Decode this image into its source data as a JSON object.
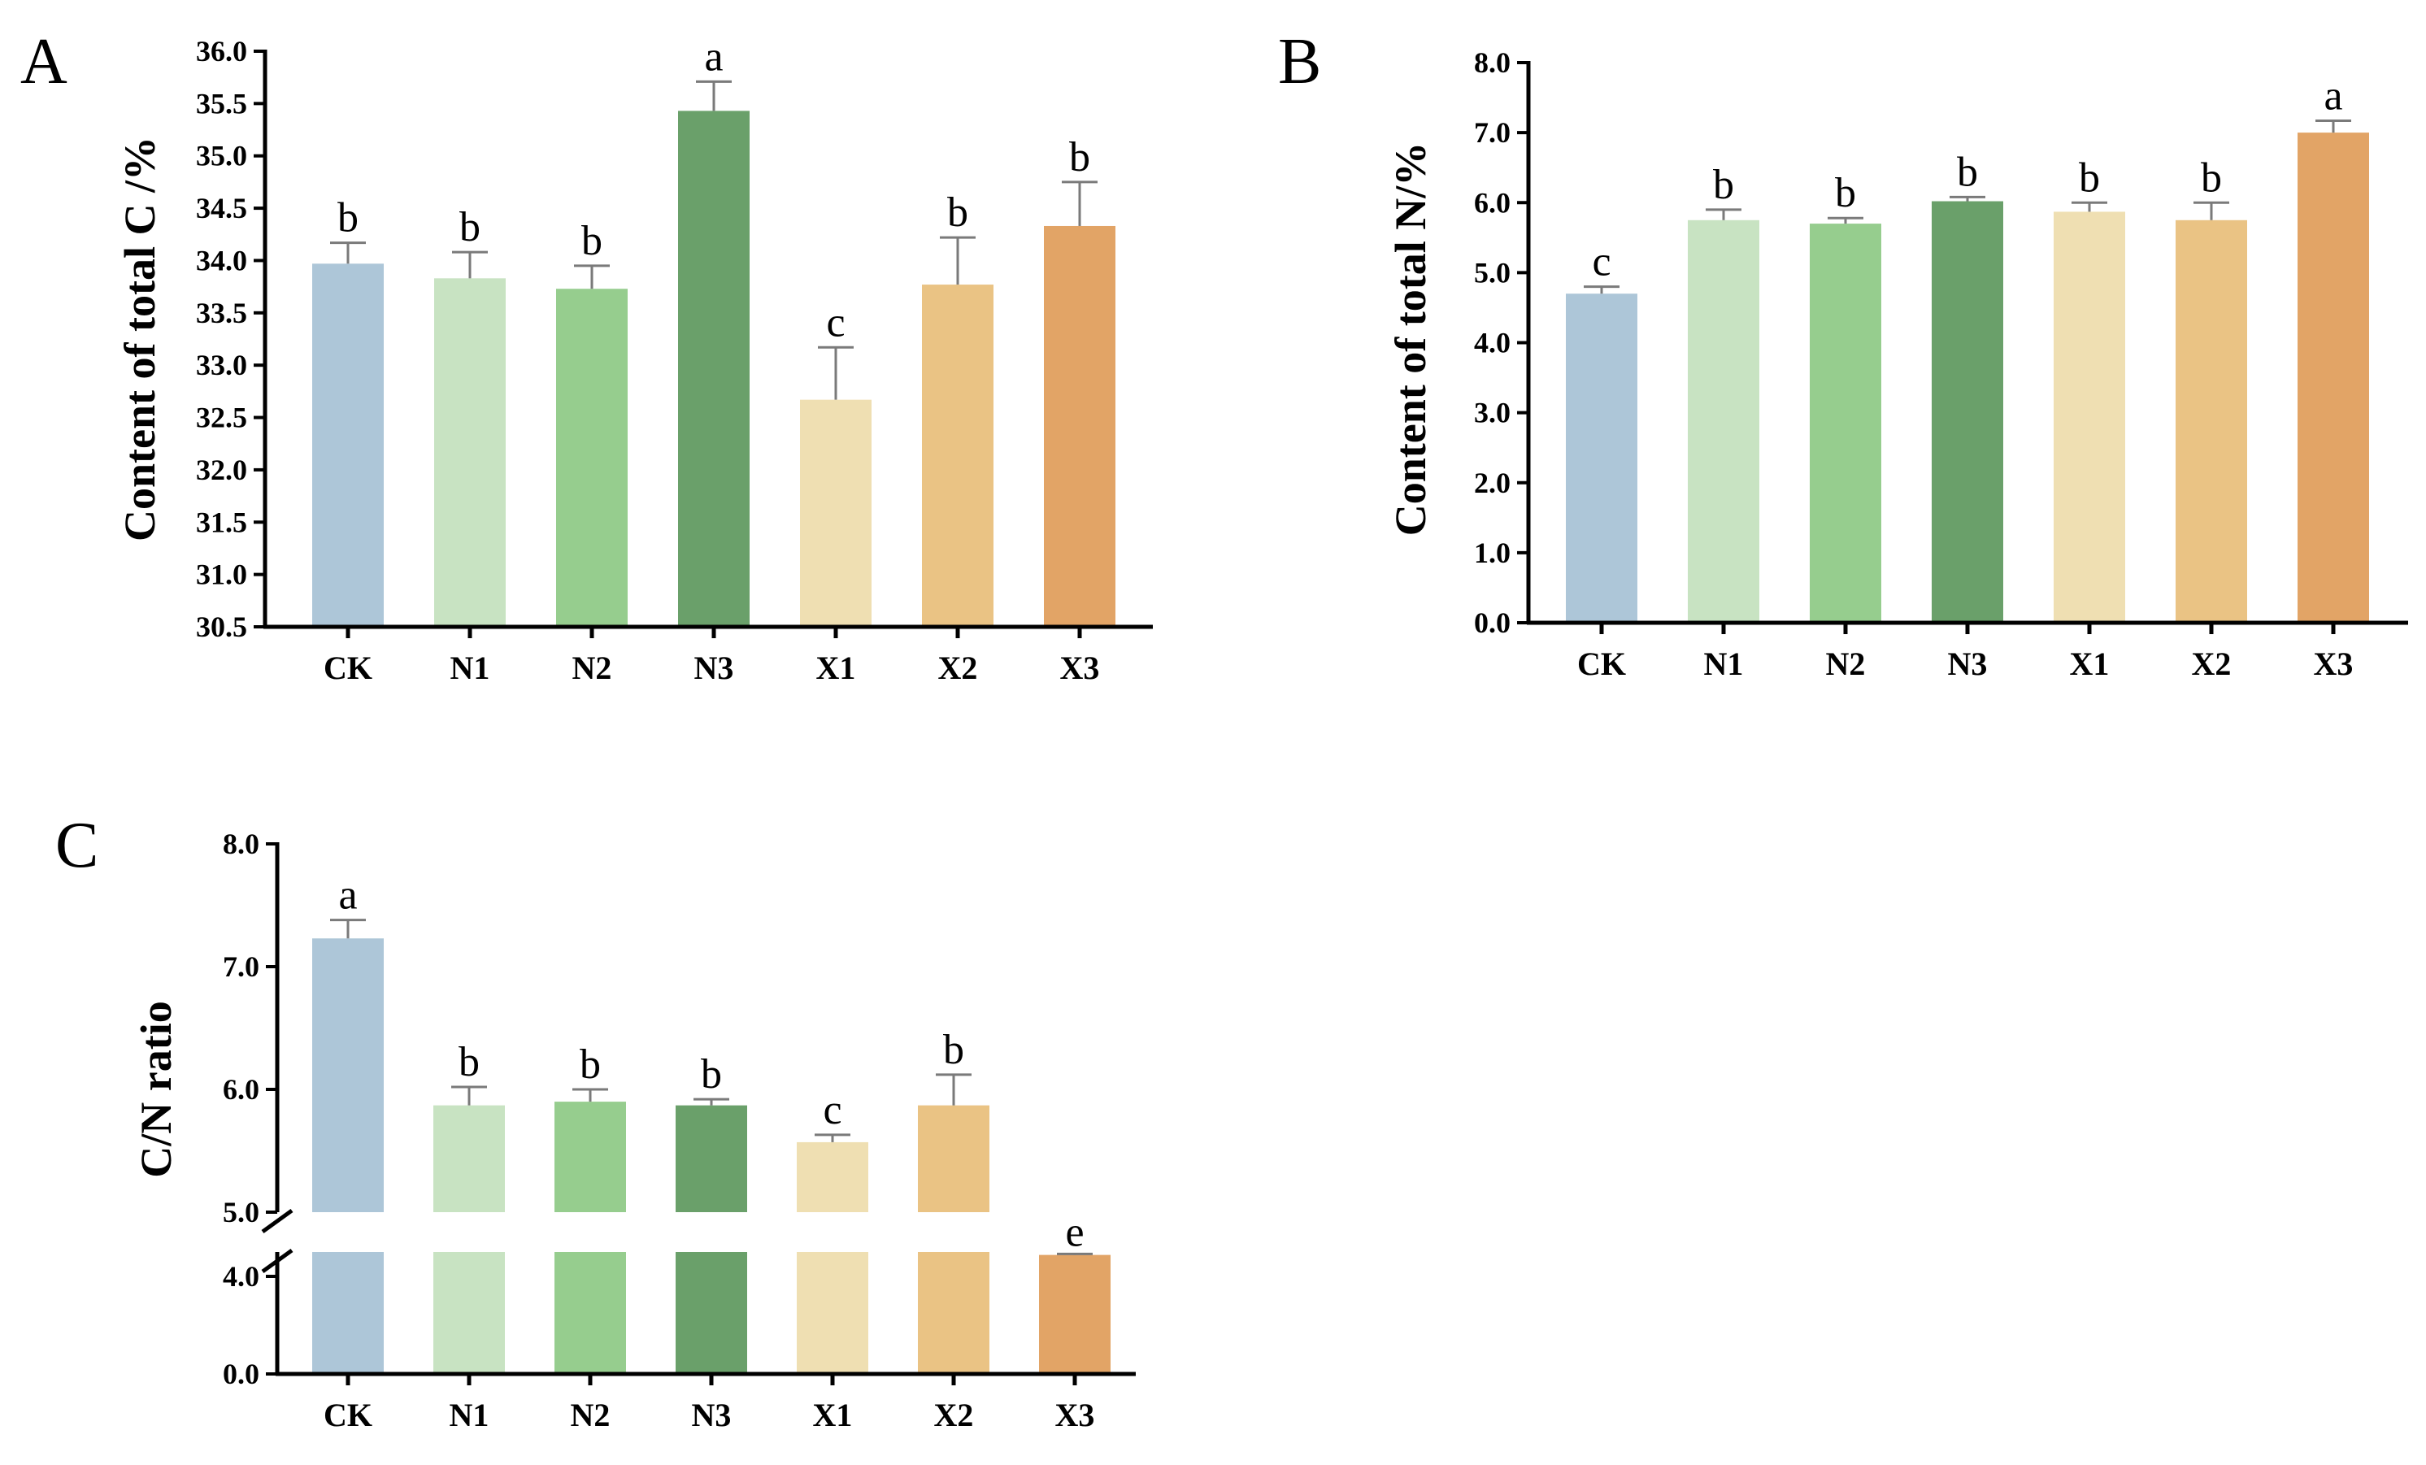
{
  "chart_data": [
    {
      "panel": "A",
      "type": "bar",
      "ylabel": "Content of  total C /%",
      "categories": [
        "CK",
        "N1",
        "N2",
        "N3",
        "X1",
        "X2",
        "X3"
      ],
      "values": [
        33.97,
        33.83,
        33.73,
        35.43,
        32.67,
        33.77,
        34.33
      ],
      "errors": [
        0.2,
        0.25,
        0.22,
        0.28,
        0.5,
        0.45,
        0.42
      ],
      "letters": [
        "b",
        "b",
        "b",
        "a",
        "c",
        "b",
        "b"
      ],
      "ylim": [
        30.5,
        36.0
      ],
      "yticks": [
        "30.5",
        "31.0",
        "31.5",
        "32.0",
        "32.5",
        "33.0",
        "33.5",
        "34.0",
        "34.5",
        "35.0",
        "35.5",
        "36.0"
      ],
      "colors": [
        "#adc6d8",
        "#c8e3c2",
        "#96cd8e",
        "#6aa06a",
        "#efdfb2",
        "#eac384",
        "#e2a466"
      ]
    },
    {
      "panel": "B",
      "type": "bar",
      "ylabel": "Content of  total N/%",
      "categories": [
        "CK",
        "N1",
        "N2",
        "N3",
        "X1",
        "X2",
        "X3"
      ],
      "values": [
        4.7,
        5.75,
        5.7,
        6.02,
        5.87,
        5.75,
        7.0
      ],
      "errors": [
        0.1,
        0.15,
        0.08,
        0.06,
        0.13,
        0.25,
        0.17
      ],
      "letters": [
        "c",
        "b",
        "b",
        "b",
        "b",
        "b",
        "a"
      ],
      "ylim": [
        0.0,
        8.0
      ],
      "yticks": [
        "0.0",
        "1.0",
        "2.0",
        "3.0",
        "4.0",
        "5.0",
        "6.0",
        "7.0",
        "8.0"
      ],
      "colors": [
        "#adc6d8",
        "#c8e3c2",
        "#96cd8e",
        "#6aa06a",
        "#efdfb2",
        "#eac384",
        "#e2a466"
      ]
    },
    {
      "panel": "C",
      "type": "bar",
      "ylabel": "C/N ratio",
      "categories": [
        "CK",
        "N1",
        "N2",
        "N3",
        "X1",
        "X2",
        "X3"
      ],
      "values": [
        7.23,
        5.87,
        5.9,
        5.87,
        5.57,
        5.87,
        4.88
      ],
      "errors": [
        0.15,
        0.15,
        0.1,
        0.05,
        0.06,
        0.25,
        0.04
      ],
      "letters": [
        "a",
        "b",
        "b",
        "b",
        "c",
        "b",
        "e"
      ],
      "ylim_lower": [
        0.0,
        5.0
      ],
      "ylim_upper": [
        5.0,
        8.0
      ],
      "yticks": [
        "0.0",
        "4.0",
        "5.0",
        "6.0",
        "7.0",
        "8.0"
      ],
      "colors": [
        "#adc6d8",
        "#c8e3c2",
        "#96cd8e",
        "#6aa06a",
        "#efdfb2",
        "#eac384",
        "#e2a466"
      ]
    }
  ]
}
